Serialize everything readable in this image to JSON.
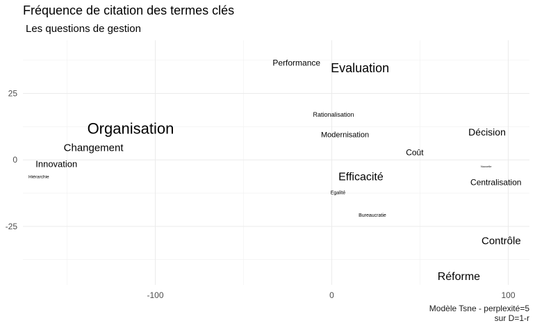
{
  "title": "Fréquence de citation des termes clés",
  "subtitle": "Les questions de gestion",
  "caption_line1": "Modèle Tsne - perplexité=5",
  "caption_line2": "sur D=1-r",
  "chart_data": {
    "type": "scatter",
    "title": "Fréquence de citation des termes clés",
    "subtitle": "Les questions de gestion",
    "xlabel": "",
    "ylabel": "",
    "xlim": [
      -175,
      112
    ],
    "ylim": [
      -47,
      45
    ],
    "x_ticks": [
      -100,
      0,
      100
    ],
    "x_tick_labels": [
      "-100",
      "0",
      "100"
    ],
    "y_ticks": [
      -25,
      0,
      25
    ],
    "y_tick_labels": [
      "-25",
      "0",
      "25"
    ],
    "grid": true,
    "points": [
      {
        "label": "Organisation",
        "x": -114,
        "y": 11.8,
        "size": 22
      },
      {
        "label": "Changement",
        "x": -135,
        "y": 4.5,
        "size": 15
      },
      {
        "label": "Innovation",
        "x": -156,
        "y": -1.5,
        "size": 13
      },
      {
        "label": "Hiérarchie",
        "x": -166,
        "y": -6.5,
        "size": 6.5
      },
      {
        "label": "Performance",
        "x": -20,
        "y": 36.5,
        "size": 12
      },
      {
        "label": "Evaluation",
        "x": 16,
        "y": 34.5,
        "size": 18
      },
      {
        "label": "Rationalisation",
        "x": 1,
        "y": 17,
        "size": 9
      },
      {
        "label": "Modernisation",
        "x": 7.5,
        "y": 9.3,
        "size": 11
      },
      {
        "label": "Décision",
        "x": 88,
        "y": 10.5,
        "size": 14
      },
      {
        "label": "Coût",
        "x": 47,
        "y": 2.8,
        "size": 12
      },
      {
        "label": "Nouvelle",
        "x": 87.5,
        "y": -2.5,
        "size": 4
      },
      {
        "label": "Efficacité",
        "x": 16.5,
        "y": -6.5,
        "size": 16
      },
      {
        "label": "Centralisation",
        "x": 93,
        "y": -8.5,
        "size": 12
      },
      {
        "label": "Egalité",
        "x": 3.5,
        "y": -12.5,
        "size": 7
      },
      {
        "label": "Bureaucratie",
        "x": 23,
        "y": -21,
        "size": 7
      },
      {
        "label": "Contrôle",
        "x": 96,
        "y": -30.5,
        "size": 15
      },
      {
        "label": "Réforme",
        "x": 72,
        "y": -44,
        "size": 16
      }
    ]
  }
}
